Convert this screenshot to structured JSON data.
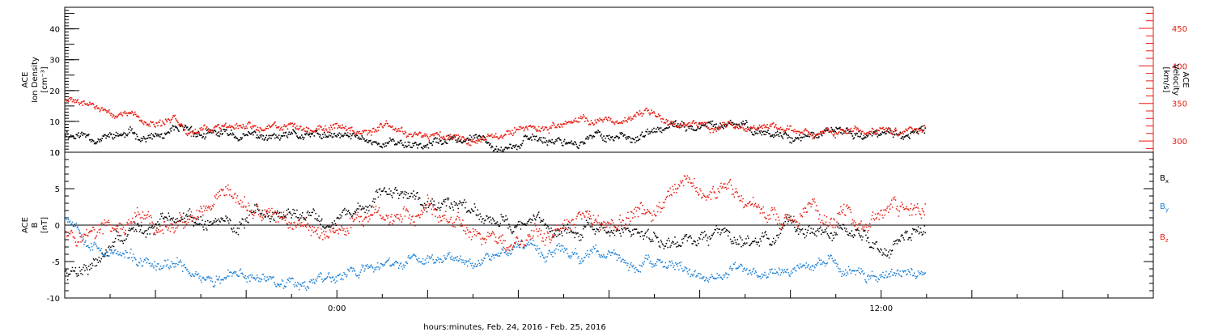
{
  "footer": {
    "xlabel": "hours:minutes, Feb. 24, 2016 - Feb. 25, 2016"
  },
  "chart_data": [
    {
      "type": "scatter",
      "title": "",
      "ylabel": [
        "ACE",
        "Ion Density",
        "[cm⁻³]"
      ],
      "ylabel_right": [
        "ACE",
        "Velocity",
        "[km/s]"
      ],
      "ylim": [
        0,
        47
      ],
      "ylim_right": [
        285,
        478
      ],
      "yticks": [
        0,
        10,
        20,
        30,
        40
      ],
      "yticks_right": [
        300,
        350,
        400,
        450
      ],
      "x": [
        "18:00",
        "20:00",
        "22:00",
        "00:00",
        "02:00",
        "04:00",
        "06:00",
        "08:00",
        "10:00",
        "12:00",
        "14:00",
        "16:00",
        "18:00"
      ],
      "xlabels_shown": [
        "0:00",
        "12:00"
      ],
      "grid": false,
      "series": [
        {
          "color": "#000000",
          "axis": "left",
          "values": [
            6.5,
            5.0,
            4.2,
            3.3,
            3.6,
            4.5,
            5.5,
            7.5,
            6.5,
            5.0,
            6.0,
            5.5,
            6.5
          ]
        },
        {
          "color": "#e8190e",
          "axis": "right",
          "values": [
            355,
            322,
            314,
            320,
            314,
            318,
            328,
            327,
            317,
            308,
            315,
            325,
            345
          ]
        }
      ]
    },
    {
      "type": "scatter",
      "title": "",
      "ylabel": [
        "ACE",
        "B",
        "[nT]"
      ],
      "ylim": [
        -10,
        10
      ],
      "yticks": [
        -10,
        -5,
        0,
        5,
        10
      ],
      "x": [
        "18:00",
        "20:00",
        "22:00",
        "00:00",
        "02:00",
        "04:00",
        "06:00",
        "08:00",
        "10:00",
        "12:00",
        "14:00",
        "16:00",
        "18:00"
      ],
      "xlabels_shown": [
        "0:00",
        "12:00"
      ],
      "legend": "right",
      "grid": false,
      "series": [
        {
          "name": "Bx",
          "color": "#000000",
          "values": [
            -6.5,
            1.0,
            0.5,
            2.0,
            5.0,
            1.0,
            -1.5,
            -1.0,
            -0.5,
            -3.0,
            0.5,
            4.0,
            -3.0
          ]
        },
        {
          "name": "By",
          "color": "#1a7fd4",
          "values": [
            1.5,
            -6.5,
            -7.5,
            -6.5,
            -5.0,
            -2.0,
            -5.0,
            -7.0,
            -6.5,
            -6.5,
            -7.5,
            -7.0,
            -8.5
          ]
        },
        {
          "name": "Bz",
          "color": "#e8190e",
          "values": [
            0.0,
            -1.5,
            0.0,
            -0.5,
            1.0,
            -3.0,
            0.0,
            3.0,
            2.0,
            1.0,
            3.5,
            0.0,
            2.5
          ]
        }
      ]
    }
  ]
}
